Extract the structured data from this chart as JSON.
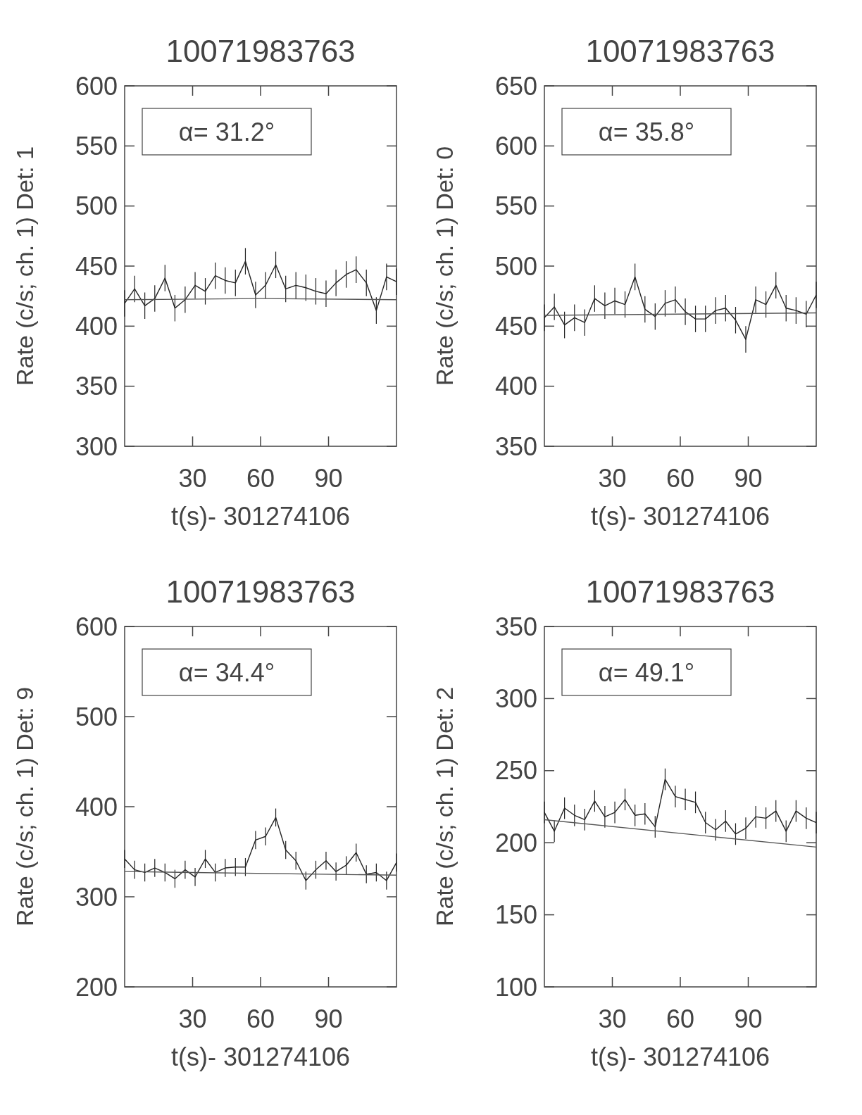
{
  "chart_data": [
    {
      "type": "line",
      "title": "10071983763",
      "xlabel": "t(s)- 301274106",
      "ylabel": "Rate (c/s; ch. 1) Det: 1",
      "annotations": [
        "α= 31.2°"
      ],
      "xlim": [
        0,
        120
      ],
      "xticks": [
        30,
        60,
        90
      ],
      "ylim": [
        300,
        600
      ],
      "yticks": [
        300,
        350,
        400,
        450,
        500,
        550,
        600
      ],
      "grid": false,
      "x": [
        0,
        4.4,
        8.9,
        13.3,
        17.8,
        22.2,
        26.7,
        31.1,
        35.6,
        40,
        44.4,
        48.9,
        53.3,
        57.8,
        62.2,
        66.7,
        71.1,
        75.6,
        80,
        84.4,
        88.9,
        93.3,
        97.8,
        102.2,
        106.7,
        111.1,
        115.6,
        120
      ],
      "series": [
        {
          "color": "#222222",
          "values": [
            419,
            431,
            417,
            423,
            440,
            415,
            422,
            434,
            429,
            442,
            438,
            436,
            454,
            426,
            434,
            451,
            431,
            434,
            432,
            429,
            427,
            436,
            443,
            447,
            436,
            413,
            441,
            437
          ],
          "errors": [
            11,
            11,
            11,
            11,
            11,
            11,
            11,
            11,
            11,
            11,
            11,
            11,
            11,
            11,
            11,
            11,
            11,
            11,
            11,
            11,
            11,
            11,
            11,
            11,
            11,
            11,
            11,
            11
          ]
        },
        {
          "color": "#555555",
          "x": [
            0,
            60,
            120
          ],
          "values": [
            422,
            423,
            422
          ]
        }
      ]
    },
    {
      "type": "line",
      "title": "10071983763",
      "xlabel": "t(s)- 301274106",
      "ylabel": "Rate (c/s; ch. 1) Det: 0",
      "annotations": [
        "α= 35.8°"
      ],
      "xlim": [
        0,
        120
      ],
      "xticks": [
        30,
        60,
        90
      ],
      "ylim": [
        350,
        650
      ],
      "yticks": [
        350,
        400,
        450,
        500,
        550,
        600,
        650
      ],
      "grid": false,
      "x": [
        0,
        4.4,
        8.9,
        13.3,
        17.8,
        22.2,
        26.7,
        31.1,
        35.6,
        40,
        44.4,
        48.9,
        53.3,
        57.8,
        62.2,
        66.7,
        71.1,
        75.6,
        80,
        84.4,
        88.9,
        93.3,
        97.8,
        102.2,
        106.7,
        111.1,
        115.6,
        120
      ],
      "series": [
        {
          "color": "#222222",
          "values": [
            457,
            466,
            451,
            457,
            453,
            473,
            467,
            471,
            468,
            491,
            464,
            458,
            469,
            472,
            462,
            456,
            456,
            463,
            465,
            455,
            439,
            472,
            468,
            484,
            465,
            463,
            460,
            476
          ],
          "errors": [
            11,
            11,
            11,
            11,
            11,
            11,
            11,
            11,
            11,
            11,
            11,
            11,
            11,
            11,
            11,
            11,
            11,
            11,
            11,
            11,
            11,
            11,
            11,
            11,
            11,
            11,
            11,
            11
          ]
        },
        {
          "color": "#555555",
          "x": [
            0,
            120
          ],
          "values": [
            459,
            461
          ]
        }
      ]
    },
    {
      "type": "line",
      "title": "10071983763",
      "xlabel": "t(s)- 301274106",
      "ylabel": "Rate (c/s; ch. 1) Det: 9",
      "annotations": [
        "α= 34.4°"
      ],
      "xlim": [
        0,
        120
      ],
      "xticks": [
        30,
        60,
        90
      ],
      "ylim": [
        200,
        600
      ],
      "yticks": [
        200,
        300,
        400,
        500,
        600
      ],
      "grid": false,
      "x": [
        0,
        4.4,
        8.9,
        13.3,
        17.8,
        22.2,
        26.7,
        31.1,
        35.6,
        40,
        44.4,
        48.9,
        53.3,
        57.8,
        62.2,
        66.7,
        71.1,
        75.6,
        80,
        84.4,
        88.9,
        93.3,
        97.8,
        102.2,
        106.7,
        111.1,
        115.6,
        120
      ],
      "series": [
        {
          "color": "#222222",
          "values": [
            342,
            330,
            327,
            332,
            327,
            320,
            330,
            322,
            342,
            327,
            332,
            333,
            333,
            363,
            367,
            388,
            352,
            340,
            318,
            330,
            340,
            328,
            335,
            349,
            325,
            327,
            318,
            338
          ],
          "errors": [
            10,
            10,
            10,
            10,
            10,
            10,
            10,
            10,
            10,
            10,
            10,
            10,
            10,
            10,
            10,
            10,
            10,
            10,
            10,
            10,
            10,
            10,
            10,
            10,
            10,
            10,
            10,
            10
          ]
        },
        {
          "color": "#555555",
          "x": [
            0,
            120
          ],
          "values": [
            328,
            324
          ]
        }
      ]
    },
    {
      "type": "line",
      "title": "10071983763",
      "xlabel": "t(s)- 301274106",
      "ylabel": "Rate (c/s; ch. 1) Det: 2",
      "annotations": [
        "α= 49.1°"
      ],
      "xlim": [
        0,
        120
      ],
      "xticks": [
        30,
        60,
        90
      ],
      "ylim": [
        100,
        350
      ],
      "yticks": [
        100,
        150,
        200,
        250,
        300,
        350
      ],
      "grid": false,
      "x": [
        0,
        4.4,
        8.9,
        13.3,
        17.8,
        22.2,
        26.7,
        31.1,
        35.6,
        40,
        44.4,
        48.9,
        53.3,
        57.8,
        62.2,
        66.7,
        71.1,
        75.6,
        80,
        84.4,
        88.9,
        93.3,
        97.8,
        102.2,
        106.7,
        111.1,
        115.6,
        120
      ],
      "series": [
        {
          "color": "#222222",
          "values": [
            221,
            208,
            224,
            219,
            216,
            229,
            218,
            221,
            230,
            219,
            220,
            211,
            244,
            232,
            230,
            228,
            214,
            209,
            215,
            206,
            210,
            218,
            217,
            222,
            208,
            222,
            217,
            214
          ],
          "errors": [
            7.5,
            7.5,
            7.5,
            7.5,
            7.5,
            7.5,
            7.5,
            7.5,
            7.5,
            7.5,
            7.5,
            7.5,
            7.5,
            7.5,
            7.5,
            7.5,
            7.5,
            7.5,
            7.5,
            7.5,
            7.5,
            7.5,
            7.5,
            7.5,
            7.5,
            7.5,
            7.5,
            7.5
          ]
        },
        {
          "color": "#555555",
          "x": [
            0,
            120
          ],
          "values": [
            216,
            197
          ]
        }
      ]
    }
  ]
}
